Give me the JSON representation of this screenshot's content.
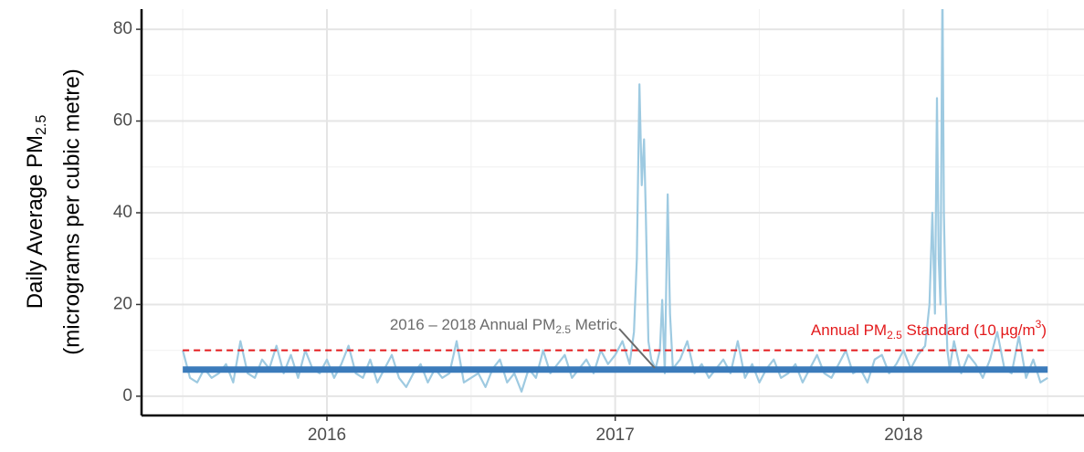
{
  "chart_data": {
    "type": "line",
    "y_label": {
      "line1": {
        "text": "Daily Average  PM",
        "sub": "2.5"
      },
      "line2": "(micrograms per cubic metre)"
    },
    "x": [
      2016.0,
      2016.025,
      2016.05,
      2016.075,
      2016.1,
      2016.125,
      2016.15,
      2016.175,
      2016.2,
      2016.225,
      2016.25,
      2016.275,
      2016.3,
      2016.325,
      2016.35,
      2016.375,
      2016.4,
      2016.425,
      2016.45,
      2016.475,
      2016.5,
      2016.525,
      2016.55,
      2016.575,
      2016.6,
      2016.625,
      2016.65,
      2016.675,
      2016.7,
      2016.725,
      2016.75,
      2016.775,
      2016.8,
      2016.825,
      2016.85,
      2016.875,
      2016.9,
      2016.925,
      2016.95,
      2016.975,
      2017.0,
      2017.025,
      2017.05,
      2017.075,
      2017.1,
      2017.125,
      2017.15,
      2017.175,
      2017.2,
      2017.225,
      2017.25,
      2017.275,
      2017.3,
      2017.325,
      2017.35,
      2017.375,
      2017.4,
      2017.425,
      2017.45,
      2017.475,
      2017.5,
      2017.525,
      2017.55,
      2017.565,
      2017.575,
      2017.584,
      2017.592,
      2017.6,
      2017.606,
      2017.615,
      2017.625,
      2017.64,
      2017.655,
      2017.663,
      2017.672,
      2017.682,
      2017.69,
      2017.7,
      2017.725,
      2017.75,
      2017.775,
      2017.8,
      2017.825,
      2017.85,
      2017.875,
      2017.9,
      2017.925,
      2017.95,
      2017.975,
      2018.0,
      2018.025,
      2018.05,
      2018.075,
      2018.1,
      2018.125,
      2018.15,
      2018.175,
      2018.2,
      2018.225,
      2018.25,
      2018.275,
      2018.3,
      2018.325,
      2018.35,
      2018.375,
      2018.4,
      2018.425,
      2018.45,
      2018.475,
      2018.5,
      2018.525,
      2018.55,
      2018.575,
      2018.59,
      2018.6,
      2018.609,
      2018.616,
      2018.622,
      2018.628,
      2018.635,
      2018.64,
      2018.645,
      2018.652,
      2018.66,
      2018.675,
      2018.7,
      2018.725,
      2018.75,
      2018.775,
      2018.8,
      2018.825,
      2018.85,
      2018.875,
      2018.9,
      2018.925,
      2018.95,
      2018.975,
      2019.0
    ],
    "series": [
      {
        "name": "Daily Average PM2.5",
        "color": "#9ecae1",
        "values": [
          10,
          4,
          3,
          6,
          4,
          5,
          7,
          3,
          12,
          5,
          4,
          8,
          6,
          11,
          5,
          9,
          4,
          10,
          6,
          5,
          8,
          4,
          7,
          11,
          5,
          4,
          8,
          3,
          6,
          9,
          4,
          2,
          5,
          7,
          3,
          6,
          4,
          5,
          12,
          3,
          4,
          5,
          2,
          6,
          8,
          3,
          5,
          1,
          6,
          4,
          10,
          5,
          7,
          9,
          4,
          6,
          8,
          5,
          10,
          7,
          9,
          12,
          7,
          14,
          30,
          68,
          46,
          56,
          40,
          12,
          8,
          6,
          10,
          21,
          5,
          44,
          18,
          6,
          8,
          12,
          5,
          7,
          4,
          6,
          8,
          5,
          12,
          4,
          7,
          3,
          6,
          8,
          4,
          5,
          7,
          3,
          6,
          9,
          5,
          4,
          7,
          10,
          5,
          6,
          3,
          8,
          9,
          5,
          7,
          10,
          6,
          9,
          11,
          20,
          40,
          18,
          65,
          30,
          20,
          90,
          40,
          24,
          10,
          6,
          12,
          5,
          9,
          7,
          4,
          8,
          14,
          6,
          5,
          13,
          4,
          8,
          3,
          4
        ]
      }
    ],
    "reference_lines": [
      {
        "value": 10,
        "from": 2016.0,
        "to": 2019.0,
        "color": "#e31a1c",
        "dashed": true,
        "label": {
          "text": "Annual PM",
          "sub": "2.5",
          "text2": " Standard (10 µg/m",
          "sup": "3",
          "text3": ")"
        }
      },
      {
        "value": 5.8,
        "from": 2016.0,
        "to": 2019.0,
        "color": "#3b7bbb",
        "dashed": false,
        "label": {
          "text": "2016 – 2018 Annual PM",
          "sub": "2.5",
          "text2": " Metric"
        }
      }
    ],
    "xlim": [
      2015.857,
      2019.126
    ],
    "xticks": [
      {
        "value": 2016.5,
        "label": "2016"
      },
      {
        "value": 2017.5,
        "label": "2017"
      },
      {
        "value": 2018.5,
        "label": "2018"
      }
    ],
    "xminor": [
      2016,
      2017,
      2018,
      2019
    ],
    "ylim": [
      -4.2,
      84.4
    ],
    "yticks": [
      0,
      20,
      40,
      60,
      80
    ],
    "yminor": [
      10,
      30,
      50,
      70
    ],
    "grid": true
  }
}
